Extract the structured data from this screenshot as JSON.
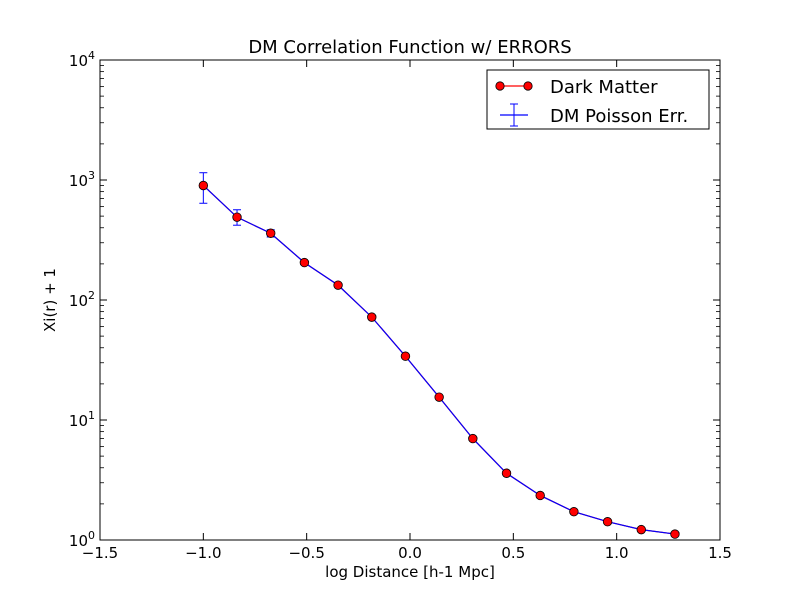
{
  "chart_data": {
    "type": "line",
    "title": "DM Correlation Function w/ ERRORS",
    "xlabel": "log Distance [h-1 Mpc]",
    "ylabel": "Xi(r) + 1",
    "xlim": [
      -1.5,
      1.5
    ],
    "ylim": [
      1,
      10000
    ],
    "yscale": "log",
    "grid": false,
    "legend_position": "top-right",
    "x_ticks": [
      {
        "value": -1.5,
        "label": "−1.5"
      },
      {
        "value": -1.0,
        "label": "−1.0"
      },
      {
        "value": -0.5,
        "label": "−0.5"
      },
      {
        "value": 0.0,
        "label": "0.0"
      },
      {
        "value": 0.5,
        "label": "0.5"
      },
      {
        "value": 1.0,
        "label": "1.0"
      },
      {
        "value": 1.5,
        "label": "1.5"
      }
    ],
    "y_ticks": [
      {
        "value": 1,
        "base": "10",
        "exp": "0"
      },
      {
        "value": 10,
        "base": "10",
        "exp": "1"
      },
      {
        "value": 100,
        "base": "10",
        "exp": "2"
      },
      {
        "value": 1000,
        "base": "10",
        "exp": "3"
      },
      {
        "value": 10000,
        "base": "10",
        "exp": "4"
      }
    ],
    "series": [
      {
        "name": "Dark Matter",
        "color": "#ff0000",
        "marker_edge": "#000000",
        "line_color": "#ff0000",
        "x": [
          -1.0,
          -0.837,
          -0.674,
          -0.511,
          -0.348,
          -0.185,
          -0.022,
          0.141,
          0.304,
          0.467,
          0.63,
          0.793,
          0.956,
          1.119,
          1.282
        ],
        "y": [
          900,
          490,
          360,
          205,
          133,
          72,
          34,
          15.5,
          7.0,
          3.6,
          2.35,
          1.72,
          1.42,
          1.22,
          1.12
        ]
      },
      {
        "name": "DM Poisson Err.",
        "color": "#0000ff",
        "x": [
          -1.0,
          -0.837,
          -0.674,
          -0.511,
          -0.348,
          -0.185,
          -0.022,
          0.141,
          0.304,
          0.467,
          0.63,
          0.793,
          0.956,
          1.119,
          1.282
        ],
        "y": [
          900,
          490,
          360,
          205,
          133,
          72,
          34,
          15.5,
          7.0,
          3.6,
          2.35,
          1.72,
          1.42,
          1.22,
          1.12
        ],
        "yerr_low": [
          640,
          420,
          335,
          198,
          130,
          71,
          33.6,
          15.3,
          6.95,
          3.58,
          2.34,
          1.715,
          1.418,
          1.219,
          1.119
        ],
        "yerr_high": [
          1150,
          565,
          385,
          212,
          136,
          73,
          34.4,
          15.7,
          7.05,
          3.62,
          2.36,
          1.725,
          1.422,
          1.221,
          1.121
        ]
      }
    ]
  }
}
